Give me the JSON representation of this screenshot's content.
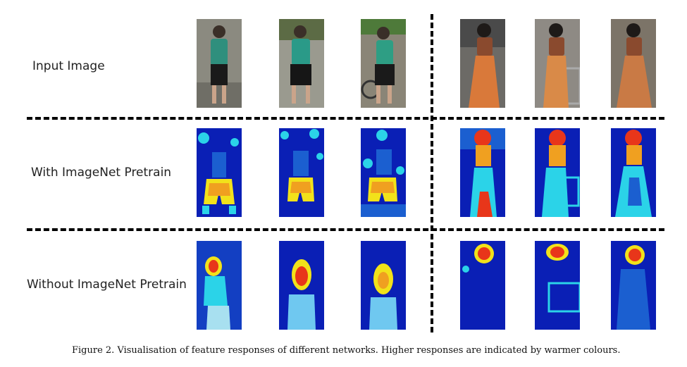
{
  "rows": [
    {
      "label": "Input Image"
    },
    {
      "label": "With ImageNet Pretrain"
    },
    {
      "label": "Without ImageNet Pretrain"
    }
  ],
  "caption": "Figure 2. Visualisation of feature responses of different networks. Higher responses are indicated by warmer colours.",
  "colors": {
    "heat_low": "#0a1fb5",
    "heat_mid": "#2bd3e8",
    "heat_high": "#f2e21a",
    "heat_peak": "#e8361a",
    "divider": "#000000"
  }
}
